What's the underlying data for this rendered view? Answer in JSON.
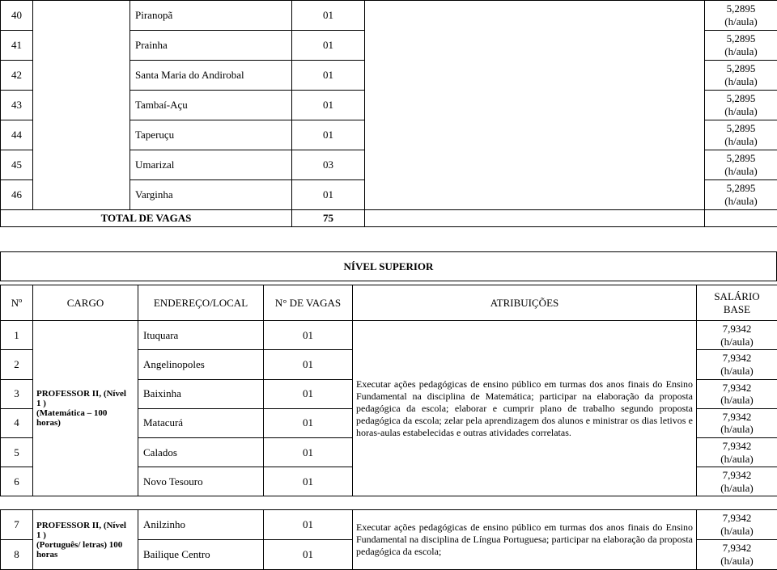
{
  "table1": {
    "rows": [
      {
        "num": "40",
        "local": "Piranopã",
        "vagas": "01",
        "sal1": "5,2895",
        "sal2": "(h/aula)"
      },
      {
        "num": "41",
        "local": "Prainha",
        "vagas": "01",
        "sal1": "5,2895",
        "sal2": "(h/aula)"
      },
      {
        "num": "42",
        "local": "Santa Maria do Andirobal",
        "vagas": "01",
        "sal1": "5,2895",
        "sal2": "(h/aula)"
      },
      {
        "num": "43",
        "local": "Tambaí-Açu",
        "vagas": "01",
        "sal1": "5,2895",
        "sal2": "(h/aula)"
      },
      {
        "num": "44",
        "local": "Taperuçu",
        "vagas": "01",
        "sal1": "5,2895",
        "sal2": "(h/aula)"
      },
      {
        "num": "45",
        "local": "Umarizal",
        "vagas": "03",
        "sal1": "5,2895",
        "sal2": "(h/aula)"
      },
      {
        "num": "46",
        "local": "Varginha",
        "vagas": "01",
        "sal1": "5,2895",
        "sal2": "(h/aula)"
      }
    ],
    "total_label": "TOTAL DE VAGAS",
    "total_value": "75"
  },
  "section2": {
    "title": "NÍVEL SUPERIOR"
  },
  "table2": {
    "headers": {
      "num": "Nº",
      "cargo": "CARGO",
      "local": "ENDEREÇO/LOCAL",
      "vagas": "N° DE VAGAS",
      "attr": "ATRIBUIÇÕES",
      "sal1": "SALÁRIO",
      "sal2": "BASE"
    },
    "cargo_l1": "PROFESSOR II, (Nível 1 )",
    "cargo_l2": "(Matemática – 100 horas)",
    "rows": [
      {
        "num": "1",
        "local": "Ituquara",
        "vagas": "01",
        "sal1": "7,9342",
        "sal2": "(h/aula)"
      },
      {
        "num": "2",
        "local": "Angelinopoles",
        "vagas": "01",
        "sal1": "7,9342",
        "sal2": "(h/aula)"
      },
      {
        "num": "3",
        "local": "Baixinha",
        "vagas": "01",
        "sal1": "7,9342",
        "sal2": "(h/aula)"
      },
      {
        "num": "4",
        "local": "Matacurá",
        "vagas": "01",
        "sal1": "7,9342",
        "sal2": "(h/aula)"
      },
      {
        "num": "5",
        "local": "Calados",
        "vagas": "01",
        "sal1": "7,9342",
        "sal2": "(h/aula)"
      },
      {
        "num": "6",
        "local": "Novo Tesouro",
        "vagas": "01",
        "sal1": "7,9342",
        "sal2": "(h/aula)"
      }
    ],
    "attr_text": "Executar ações pedagógicas de ensino público em turmas dos anos finais do Ensino Fundamental na disciplina de Matemática; participar na elaboração da proposta pedagógica da escola; elaborar e cumprir plano de trabalho segundo proposta pedagógica da escola; zelar pela aprendizagem dos alunos e ministrar os dias letivos e horas-aulas estabelecidas e outras atividades correlatas."
  },
  "table3": {
    "cargo_l1": "PROFESSOR II, (Nível 1 )",
    "cargo_l2": "(Português/ letras) 100 horas",
    "rows": [
      {
        "num": "7",
        "local": "Anilzinho",
        "vagas": "01",
        "sal1": "7,9342",
        "sal2": "(h/aula)"
      },
      {
        "num": "8",
        "local": "Bailique Centro",
        "vagas": "01",
        "sal1": "7,9342",
        "sal2": "(h/aula)"
      }
    ],
    "attr_text": "Executar ações pedagógicas de ensino público em turmas dos anos finais do Ensino Fundamental na disciplina de Língua Portuguesa; participar na elaboração da proposta pedagógica da escola;"
  }
}
